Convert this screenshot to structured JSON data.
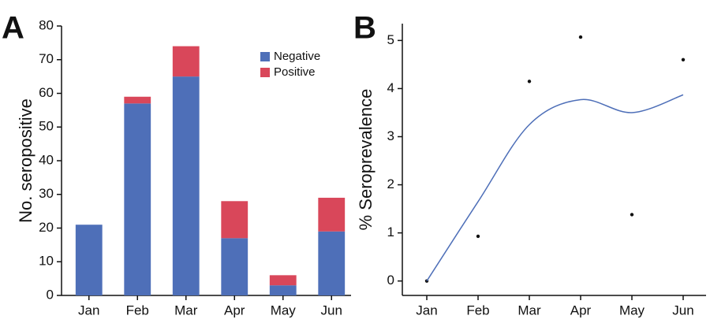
{
  "chart_data": [
    {
      "type": "bar",
      "stacked": true,
      "panel_label": "A",
      "y_label": "No. seropositive",
      "categories": [
        "Jan",
        "Feb",
        "Mar",
        "Apr",
        "May",
        "Jun"
      ],
      "series": [
        {
          "name": "Negative",
          "color": "#4e6fb8",
          "values": [
            21,
            57,
            65,
            17,
            3,
            19
          ]
        },
        {
          "name": "Positive",
          "color": "#d9475a",
          "values": [
            0,
            2,
            9,
            11,
            3,
            10
          ]
        }
      ],
      "ylim": [
        0,
        80
      ],
      "yticks": [
        0,
        10,
        20,
        30,
        40,
        50,
        60,
        70,
        80
      ],
      "legend": "top-right"
    },
    {
      "type": "line",
      "panel_label": "B",
      "y_label": "% Seroprevalence",
      "categories": [
        "Jan",
        "Feb",
        "Mar",
        "Apr",
        "May",
        "Jun"
      ],
      "series": [
        {
          "style": "points",
          "color": "#111111",
          "values": [
            0,
            0.93,
            4.15,
            5.07,
            1.38,
            4.6
          ]
        },
        {
          "style": "smooth",
          "color": "#4e6fb8",
          "values": [
            0,
            1.65,
            3.25,
            3.77,
            3.5,
            3.87
          ]
        }
      ],
      "ylim": [
        -0.3,
        5.35
      ],
      "yticks": [
        0,
        1,
        2,
        3,
        4,
        5
      ]
    }
  ]
}
